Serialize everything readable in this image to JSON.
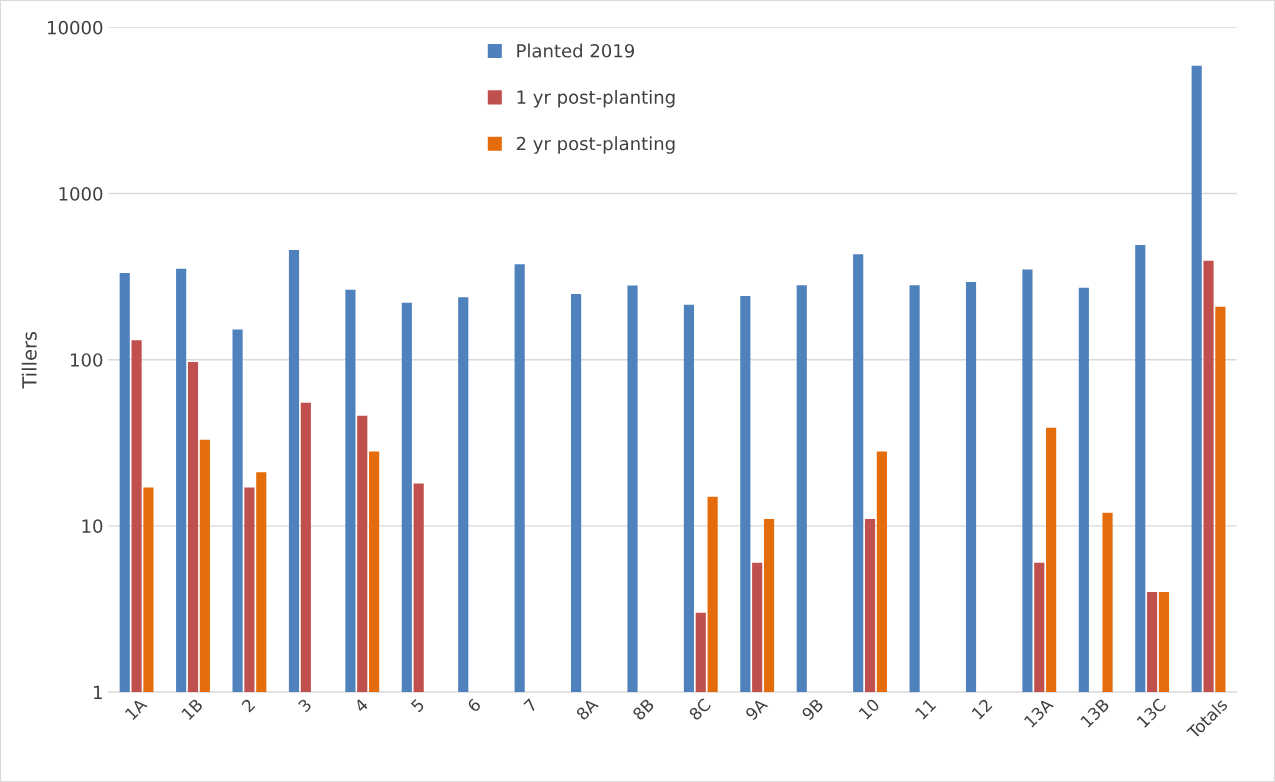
{
  "chart_data": {
    "type": "bar",
    "ylabel": "Tillers",
    "categories": [
      "1A",
      "1B",
      "2",
      "3",
      "4",
      "5",
      "6",
      "7",
      "8A",
      "8B",
      "8C",
      "9A",
      "9B",
      "10",
      "11",
      "12",
      "13A",
      "13B",
      "13C",
      "Totals"
    ],
    "series": [
      {
        "name": "Planted 2019",
        "color": "#4f81bd",
        "values": [
          333,
          353,
          152,
          457,
          264,
          220,
          238,
          375,
          249,
          280,
          214,
          242,
          281,
          431,
          281,
          294,
          349,
          271,
          491,
          5870
        ]
      },
      {
        "name": "1 yr post-planting",
        "color": "#c0504d",
        "values": [
          131,
          97,
          17,
          55,
          46,
          18,
          null,
          null,
          null,
          null,
          3,
          6,
          null,
          11,
          null,
          null,
          6,
          null,
          4,
          394
        ]
      },
      {
        "name": "2 yr post-planting",
        "color": "#e46c0a",
        "values": [
          17,
          33,
          21,
          null,
          28,
          null,
          null,
          null,
          null,
          null,
          15,
          11,
          null,
          28,
          null,
          null,
          39,
          12,
          4,
          208
        ]
      }
    ],
    "log": true,
    "ylim": [
      1,
      10000
    ],
    "yticks": [
      1,
      10,
      100,
      1000,
      10000
    ],
    "grid": "y",
    "legend": "top"
  }
}
